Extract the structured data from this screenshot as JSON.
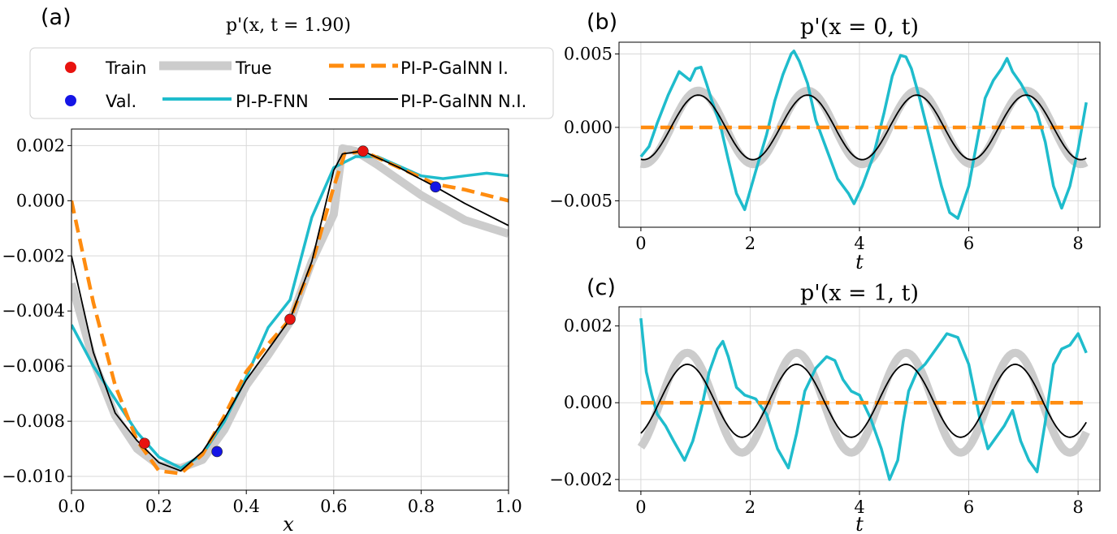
{
  "colors": {
    "train": "#e8130f",
    "val": "#1515e6",
    "true": "#cccccc",
    "fnn": "#1fbccc",
    "galnn_i": "#ff8c0f",
    "galnn_ni": "#000000"
  },
  "legend": {
    "train": "Train",
    "val": "Val.",
    "true": "True",
    "fnn": "PI-P-FNN",
    "galnn_i": "PI-P-GalNN I.",
    "galnn_ni": "PI-P-GalNN N.I."
  },
  "chart_data": [
    {
      "panel": "(a)",
      "type": "line",
      "title": "p'(x, t = 1.90)",
      "xlabel": "x",
      "ylabel": "",
      "xlim": [
        0.0,
        1.0
      ],
      "ylim": [
        -0.0105,
        0.0026
      ],
      "xticks": [
        "0.0",
        "0.2",
        "0.4",
        "0.6",
        "0.8",
        "1.0"
      ],
      "yticks": [
        "0.002",
        "0.000",
        "−0.002",
        "−0.004",
        "−0.006",
        "−0.008",
        "−0.010"
      ],
      "grid": true,
      "series": [
        {
          "name": "True",
          "x": [
            0,
            0.05,
            0.1,
            0.15,
            0.2,
            0.25,
            0.3,
            0.35,
            0.4,
            0.45,
            0.5,
            0.55,
            0.6,
            0.62,
            0.65,
            0.7,
            0.8,
            0.9,
            1.0
          ],
          "y": [
            -0.003,
            -0.0058,
            -0.0078,
            -0.009,
            -0.0096,
            -0.0097,
            -0.0094,
            -0.0083,
            -0.0067,
            -0.0056,
            -0.0044,
            -0.0022,
            -0.0005,
            0.0019,
            0.0018,
            0.0013,
            0.0002,
            -0.0007,
            -0.0012
          ]
        },
        {
          "name": "PI-P-FNN",
          "x": [
            0,
            0.05,
            0.1,
            0.15,
            0.2,
            0.25,
            0.3,
            0.35,
            0.4,
            0.45,
            0.5,
            0.55,
            0.6,
            0.65,
            0.7,
            0.8,
            0.85,
            0.9,
            0.95,
            1.0
          ],
          "y": [
            -0.0045,
            -0.006,
            -0.0072,
            -0.0084,
            -0.0093,
            -0.0097,
            -0.0092,
            -0.008,
            -0.0064,
            -0.0046,
            -0.0036,
            -0.0006,
            0.0012,
            0.0016,
            0.0016,
            0.0009,
            0.0008,
            0.0009,
            0.001,
            0.0009
          ]
        },
        {
          "name": "PI-P-GalNN I.",
          "x": [
            0,
            0.05,
            0.1,
            0.15,
            0.2,
            0.25,
            0.3,
            0.35,
            0.4,
            0.45,
            0.5,
            0.55,
            0.6,
            0.625,
            0.667,
            0.75,
            0.833,
            0.9,
            1.0
          ],
          "y": [
            0.0,
            -0.0037,
            -0.0067,
            -0.0087,
            -0.0098,
            -0.0099,
            -0.0092,
            -0.0078,
            -0.0062,
            -0.0052,
            -0.0043,
            -0.0023,
            0.0005,
            0.0017,
            0.0018,
            0.0012,
            0.0006,
            0.0004,
            0.0
          ]
        },
        {
          "name": "PI-P-GalNN N.I.",
          "x": [
            0,
            0.05,
            0.1,
            0.15,
            0.2,
            0.25,
            0.3,
            0.35,
            0.4,
            0.45,
            0.5,
            0.55,
            0.6,
            0.62,
            0.667,
            0.75,
            0.833,
            0.9,
            1.0
          ],
          "y": [
            -0.002,
            -0.0055,
            -0.0077,
            -0.0087,
            -0.0095,
            -0.0098,
            -0.0091,
            -0.0079,
            -0.0065,
            -0.0054,
            -0.0043,
            -0.0022,
            0.0011,
            0.0017,
            0.0018,
            0.0012,
            0.0005,
            -0.0001,
            -0.0009
          ]
        }
      ],
      "markers": [
        {
          "name": "Train",
          "x": [
            0.167,
            0.5,
            0.667
          ],
          "y": [
            -0.0088,
            -0.0043,
            0.0018
          ]
        },
        {
          "name": "Val.",
          "x": [
            0.333,
            0.833
          ],
          "y": [
            -0.0091,
            0.0005
          ]
        }
      ]
    },
    {
      "panel": "(b)",
      "type": "line",
      "title": "p'(x = 0, t)",
      "xlabel": "t",
      "ylabel": "",
      "xlim": [
        -0.4,
        8.4
      ],
      "ylim": [
        -0.0068,
        0.0058
      ],
      "xticks": [
        "0",
        "2",
        "4",
        "6",
        "8"
      ],
      "yticks": [
        "0.005",
        "0.000",
        "−0.005"
      ],
      "grid": true,
      "series": [
        {
          "name": "True",
          "function": "sine",
          "amplitude": 0.0025,
          "period": 2.0,
          "phase_peak_t": 1.05,
          "t_range": [
            0,
            8.15
          ]
        },
        {
          "name": "PI-P-GalNN N.I.",
          "function": "sine",
          "amplitude": 0.0022,
          "period": 2.0,
          "phase_peak_t": 1.05,
          "t_range": [
            0,
            8.15
          ]
        },
        {
          "name": "PI-P-GalNN I.",
          "x": [
            0,
            8.15
          ],
          "y": [
            0,
            0
          ]
        },
        {
          "name": "PI-P-FNN",
          "x": [
            0,
            0.15,
            0.3,
            0.5,
            0.7,
            0.9,
            1.0,
            1.1,
            1.2,
            1.3,
            1.45,
            1.6,
            1.75,
            1.9,
            2.1,
            2.3,
            2.45,
            2.6,
            2.75,
            2.8,
            2.9,
            3.05,
            3.2,
            3.4,
            3.6,
            3.8,
            3.9,
            4.05,
            4.25,
            4.45,
            4.6,
            4.75,
            4.85,
            4.95,
            5.1,
            5.3,
            5.5,
            5.65,
            5.8,
            6.0,
            6.15,
            6.3,
            6.45,
            6.6,
            6.7,
            6.8,
            6.95,
            7.1,
            7.25,
            7.4,
            7.55,
            7.7,
            7.85,
            8.0,
            8.15
          ],
          "y": [
            -0.002,
            -0.0013,
            0.0003,
            0.0022,
            0.0038,
            0.0032,
            0.004,
            0.0041,
            0.003,
            0.0018,
            0.0002,
            -0.0022,
            -0.0045,
            -0.0056,
            -0.003,
            -0.0005,
            0.0018,
            0.0036,
            0.005,
            0.0052,
            0.0045,
            0.003,
            0.0005,
            -0.0015,
            -0.0035,
            -0.0045,
            -0.0052,
            -0.004,
            -0.002,
            0.001,
            0.0035,
            0.0049,
            0.0048,
            0.004,
            0.002,
            -0.001,
            -0.004,
            -0.0058,
            -0.0062,
            -0.004,
            -0.001,
            0.002,
            0.0032,
            0.004,
            0.0047,
            0.0038,
            0.003,
            0.002,
            0.001,
            -0.001,
            -0.004,
            -0.0055,
            -0.004,
            -0.0015,
            0.0017
          ]
        }
      ]
    },
    {
      "panel": "(c)",
      "type": "line",
      "title": "p'(x = 1, t)",
      "xlabel": "t",
      "ylabel": "",
      "xlim": [
        -0.4,
        8.4
      ],
      "ylim": [
        -0.0023,
        0.0025
      ],
      "xticks": [
        "0",
        "2",
        "4",
        "6",
        "8"
      ],
      "yticks": [
        "0.002",
        "0.000",
        "−0.002"
      ],
      "grid": true,
      "series": [
        {
          "name": "True",
          "function": "sine",
          "amplitude": 0.0013,
          "period": 2.0,
          "phase_peak_t": 0.85,
          "t_range": [
            0,
            8.15
          ]
        },
        {
          "name": "PI-P-GalNN N.I.",
          "function": "sine",
          "amplitude": 0.00095,
          "period": 2.0,
          "phase_peak_t": 0.85,
          "offset": 5e-05,
          "t_range": [
            0,
            8.15
          ]
        },
        {
          "name": "PI-P-GalNN I.",
          "x": [
            0,
            8.15
          ],
          "y": [
            0,
            0
          ]
        },
        {
          "name": "PI-P-FNN",
          "x": [
            0,
            0.1,
            0.2,
            0.3,
            0.45,
            0.6,
            0.8,
            0.95,
            1.1,
            1.25,
            1.4,
            1.5,
            1.6,
            1.75,
            1.9,
            2.1,
            2.3,
            2.5,
            2.7,
            2.85,
            3.0,
            3.2,
            3.4,
            3.55,
            3.7,
            3.85,
            4.0,
            4.2,
            4.4,
            4.55,
            4.7,
            4.8,
            4.9,
            5.05,
            5.2,
            5.4,
            5.6,
            5.8,
            6.0,
            6.2,
            6.35,
            6.5,
            6.65,
            6.8,
            6.95,
            7.1,
            7.25,
            7.4,
            7.55,
            7.7,
            7.85,
            8.0,
            8.15
          ],
          "y": [
            0.0022,
            0.0008,
            0.0002,
            -0.0003,
            -0.0006,
            -0.001,
            -0.0015,
            -0.001,
            -0.0002,
            0.0008,
            0.0014,
            0.0016,
            0.0012,
            0.0004,
            0.0002,
            0.0001,
            -0.0003,
            -0.0012,
            -0.0017,
            -0.0008,
            0.0003,
            0.0009,
            0.0012,
            0.0011,
            0.0006,
            0.0003,
            0.0002,
            -0.0004,
            -0.0012,
            -0.002,
            -0.0015,
            -0.0005,
            0.0003,
            0.0008,
            0.001,
            0.0014,
            0.0018,
            0.0017,
            0.001,
            -0.0004,
            -0.0012,
            -0.0009,
            -0.0006,
            -0.0002,
            -0.001,
            -0.0015,
            -0.0018,
            -0.0005,
            0.001,
            0.0014,
            0.0015,
            0.0018,
            0.0013
          ]
        }
      ]
    }
  ]
}
